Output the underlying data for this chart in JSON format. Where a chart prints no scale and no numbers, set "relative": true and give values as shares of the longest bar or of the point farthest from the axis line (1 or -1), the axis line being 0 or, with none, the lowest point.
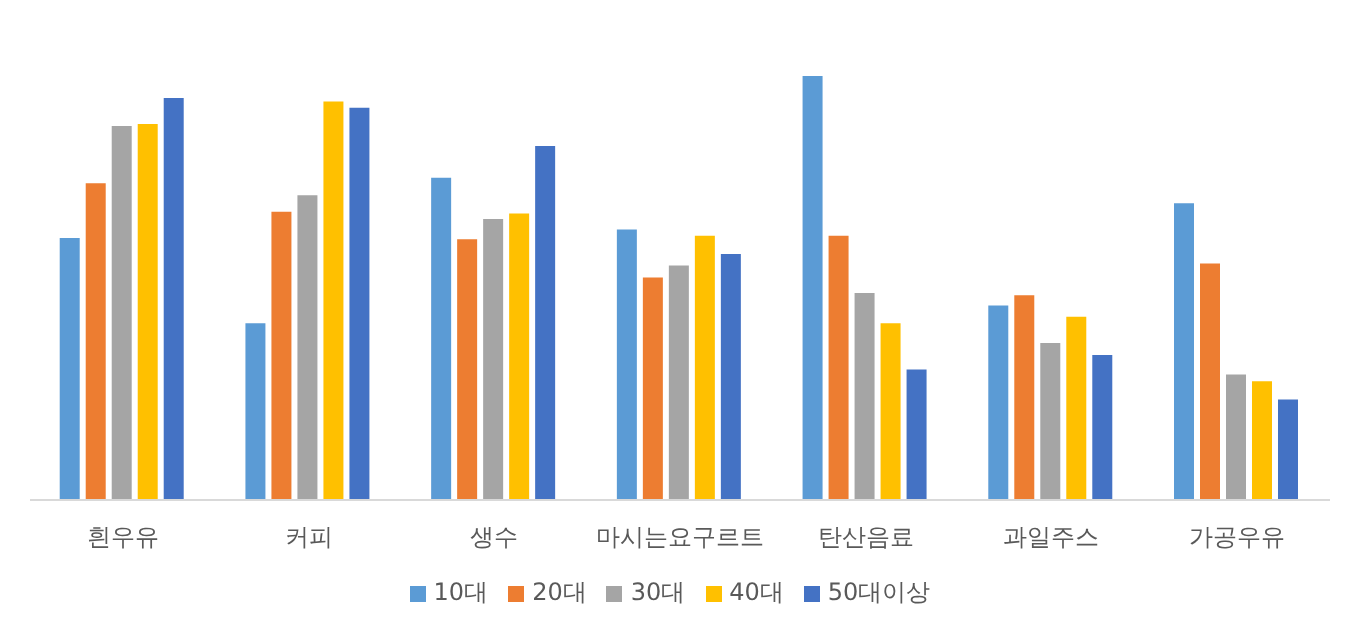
{
  "chart_data": {
    "type": "bar",
    "relative": true,
    "categories": [
      "흰우유",
      "커피",
      "생수",
      "마시는요구르트",
      "탄산음료",
      "과일주스",
      "가공우유"
    ],
    "series": [
      {
        "name": "10대",
        "color": "#5b9bd5",
        "values": [
          0.618,
          0.417,
          0.76,
          0.638,
          1,
          0.459,
          0.7
        ]
      },
      {
        "name": "20대",
        "color": "#ed7d31",
        "values": [
          0.747,
          0.68,
          0.615,
          0.525,
          0.623,
          0.483,
          0.558
        ]
      },
      {
        "name": "30대",
        "color": "#a5a5a5",
        "values": [
          0.882,
          0.719,
          0.663,
          0.553,
          0.488,
          0.37,
          0.296
        ]
      },
      {
        "name": "40대",
        "color": "#ffc000",
        "values": [
          0.887,
          0.94,
          0.676,
          0.623,
          0.417,
          0.432,
          0.28
        ]
      },
      {
        "name": "50대이상",
        "color": "#4472c4",
        "values": [
          0.948,
          0.925,
          0.835,
          0.58,
          0.308,
          0.342,
          0.237
        ]
      }
    ],
    "grid": false,
    "legend": "bottom"
  }
}
